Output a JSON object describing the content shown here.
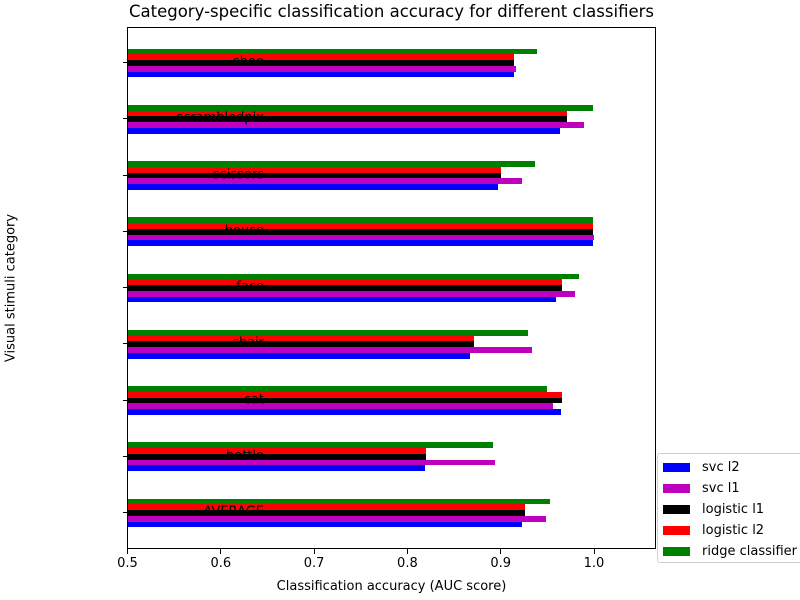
{
  "chart_data": {
    "type": "bar",
    "orientation": "horizontal",
    "title": "Category-specific classification accuracy for different classifiers",
    "xlabel": "Classification accuracy (AUC score)",
    "ylabel": "Visual stimuli category",
    "xlim": [
      0.5,
      1.067
    ],
    "xticks": [
      "0.5",
      "0.6",
      "0.7",
      "0.8",
      "0.9",
      "1.0"
    ],
    "grid": false,
    "legend_position": "lower right (outside axes)",
    "categories": [
      "shoe",
      "scrambledpix",
      "scissors",
      "house",
      "face",
      "chair",
      "cat",
      "bottle",
      "AVERAGE"
    ],
    "series": [
      {
        "name": "svc l2",
        "color": "#0000ff",
        "values": [
          0.914,
          0.963,
          0.897,
          0.998,
          0.959,
          0.867,
          0.964,
          0.818,
          0.922
        ]
      },
      {
        "name": "svc l1",
        "color": "#bf00bf",
        "values": [
          0.916,
          0.989,
          0.922,
          0.999,
          0.979,
          0.933,
          0.956,
          0.893,
          0.948
        ]
      },
      {
        "name": "logistic l1",
        "color": "#000000",
        "values": [
          0.914,
          0.97,
          0.9,
          0.998,
          0.965,
          0.871,
          0.965,
          0.819,
          0.925
        ]
      },
      {
        "name": "logistic l2",
        "color": "#ff0000",
        "values": [
          0.914,
          0.97,
          0.9,
          0.998,
          0.965,
          0.871,
          0.965,
          0.819,
          0.925
        ]
      },
      {
        "name": "ridge classifier",
        "color": "#008000",
        "values": [
          0.938,
          0.998,
          0.936,
          0.998,
          0.983,
          0.929,
          0.949,
          0.891,
          0.952
        ]
      }
    ]
  }
}
